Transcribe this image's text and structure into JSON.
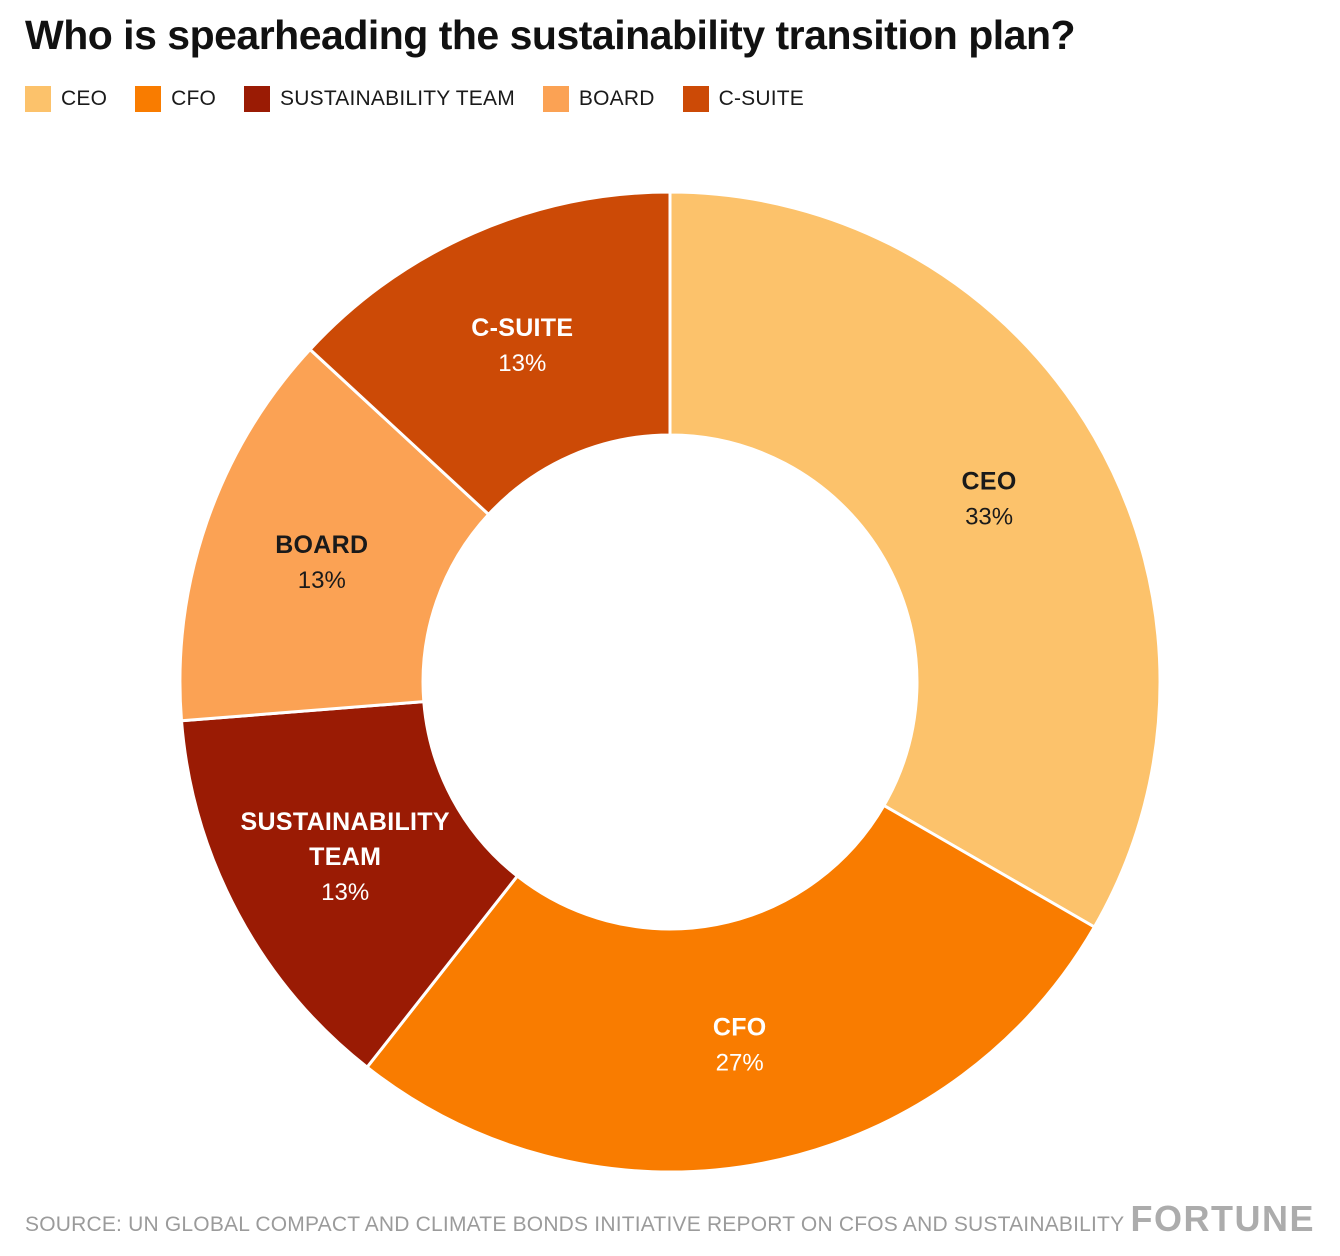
{
  "title": "Who is spearheading the sustainability transition plan?",
  "source_text": "SOURCE: UN GLOBAL COMPACT AND CLIMATE BONDS INITIATIVE REPORT ON CFOS AND SUSTAINABILITY",
  "brand": "FORTUNE",
  "chart_data": {
    "type": "pie",
    "subtype": "donut",
    "title": "Who is spearheading the sustainability transition plan?",
    "categories": [
      "CEO",
      "CFO",
      "SUSTAINABILITY TEAM",
      "BOARD",
      "C-SUITE"
    ],
    "values": [
      33,
      27,
      13,
      13,
      13
    ],
    "unit": "%",
    "colors": [
      "#FCC26B",
      "#F97C00",
      "#9A1B04",
      "#FBA254",
      "#CC4A06"
    ],
    "label_text_colors": [
      "#1a1a1a",
      "#ffffff",
      "#ffffff",
      "#1a1a1a",
      "#ffffff"
    ],
    "label_lines": {
      "SUSTAINABILITY TEAM": [
        "SUSTAINABILITY",
        "TEAM"
      ]
    },
    "start_angle_deg": 0,
    "direction": "clockwise",
    "inner_radius_ratio": 0.504,
    "legend_position": "top-left",
    "legend_entries": [
      "CEO",
      "CFO",
      "SUSTAINABILITY TEAM",
      "BOARD",
      "C-SUITE"
    ]
  }
}
